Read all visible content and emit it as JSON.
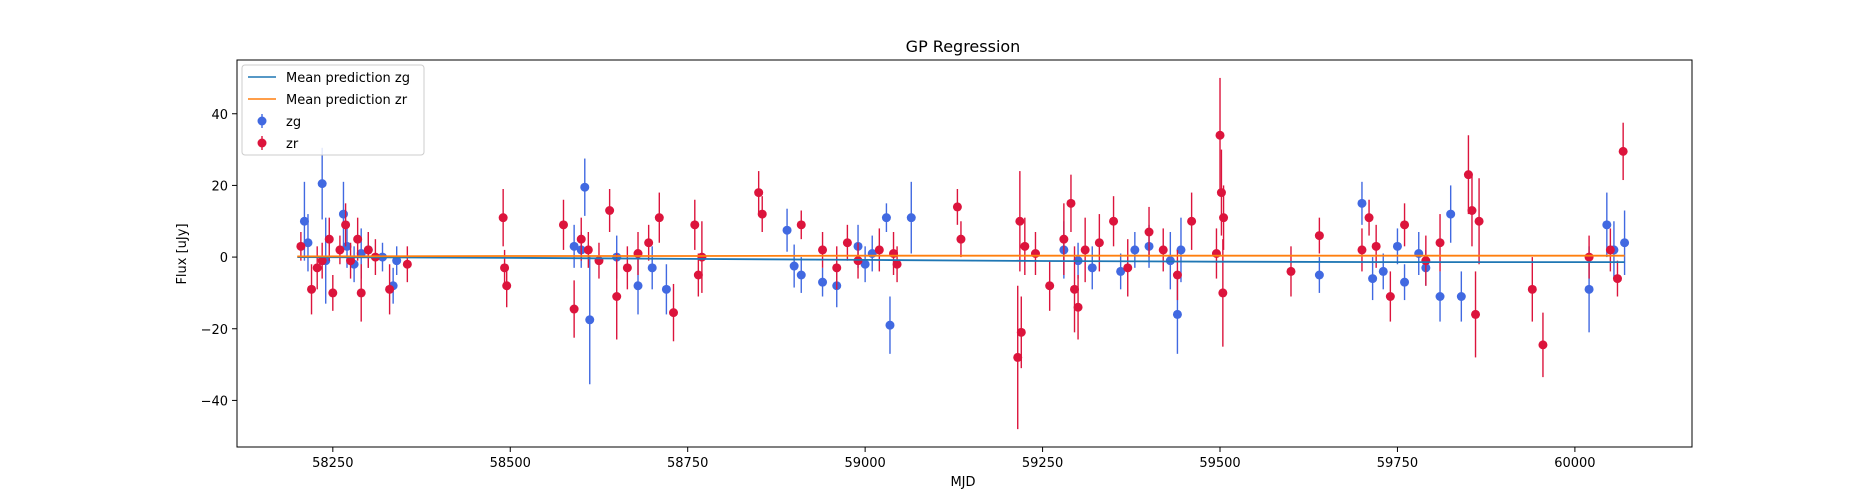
{
  "chart_data": {
    "type": "scatter",
    "title": "GP Regression",
    "xlabel": "MJD",
    "ylabel": "Flux [uJy]",
    "xlim": [
      58115,
      60165
    ],
    "ylim": [
      -53,
      55
    ],
    "xticks": [
      58250,
      58500,
      58750,
      59000,
      59250,
      59500,
      59750,
      60000
    ],
    "yticks": [
      -40,
      -20,
      0,
      20,
      40
    ],
    "grid": false,
    "legend_position": "top-left",
    "lines": [
      {
        "name": "Mean prediction zg",
        "color": "#1f77b4",
        "x": [
          58200,
          58500,
          58750,
          59000,
          59250,
          59500,
          59750,
          60000,
          60070
        ],
        "y": [
          0.0,
          -0.2,
          -0.5,
          -0.8,
          -1.1,
          -1.3,
          -1.4,
          -1.4,
          -1.4
        ]
      },
      {
        "name": "Mean prediction zr",
        "color": "#ff7f0e",
        "x": [
          58200,
          58500,
          58750,
          59000,
          59250,
          59500,
          59750,
          60000,
          60070
        ],
        "y": [
          0.2,
          0.3,
          0.3,
          0.4,
          0.4,
          0.4,
          0.4,
          0.4,
          0.4
        ]
      }
    ],
    "series": [
      {
        "name": "zg",
        "color": "#4169e1",
        "x": [
          58210,
          58215,
          58235,
          58240,
          58265,
          58270,
          58280,
          58290,
          58300,
          58320,
          58335,
          58340,
          58590,
          58600,
          58605,
          58612,
          58650,
          58680,
          58700,
          58720,
          58890,
          58900,
          58910,
          58940,
          58960,
          58990,
          59000,
          59010,
          59030,
          59035,
          59065,
          59280,
          59300,
          59320,
          59360,
          59380,
          59400,
          59430,
          59440,
          59445,
          59640,
          59700,
          59715,
          59730,
          59750,
          59760,
          59780,
          59790,
          59810,
          59825,
          59840,
          60020,
          60045,
          60055,
          60070
        ],
        "y": [
          10,
          4,
          20.5,
          -1,
          12,
          3,
          -2,
          1,
          2,
          0,
          -8,
          -1,
          3,
          2,
          19.5,
          -17.5,
          0,
          -8,
          -3,
          -9,
          7.5,
          -2.5,
          -5,
          -7,
          -8,
          3,
          -2,
          1,
          11,
          -19,
          11,
          2,
          -1,
          -3,
          -4,
          2,
          3,
          -1,
          -16,
          2,
          -5,
          15,
          -6,
          -4,
          3,
          -7,
          1,
          -3,
          -11,
          12,
          -11,
          -9,
          9,
          2,
          4
        ],
        "err": [
          11,
          8,
          10,
          12,
          9,
          6,
          5,
          7,
          5,
          4,
          5,
          4,
          6,
          5,
          8,
          18,
          6,
          8,
          6,
          7,
          6,
          6,
          5,
          4,
          6,
          6,
          5,
          5,
          4,
          8,
          10,
          8,
          5,
          6,
          5,
          5,
          6,
          8,
          11,
          9,
          5,
          6,
          6,
          5,
          5,
          5,
          6,
          5,
          7,
          8,
          7,
          12,
          9,
          8,
          9
        ]
      },
      {
        "name": "zr",
        "color": "#dc143c",
        "x": [
          58205,
          58220,
          58228,
          58235,
          58245,
          58250,
          58260,
          58268,
          58275,
          58285,
          58290,
          58300,
          58310,
          58330,
          58355,
          58490,
          58492,
          58495,
          58575,
          58590,
          58600,
          58610,
          58625,
          58640,
          58650,
          58665,
          58680,
          58695,
          58710,
          58730,
          58760,
          58765,
          58770,
          58850,
          58855,
          58910,
          58940,
          58960,
          58975,
          58990,
          59020,
          59040,
          59045,
          59130,
          59135,
          59215,
          59218,
          59220,
          59225,
          59240,
          59260,
          59280,
          59290,
          59295,
          59300,
          59310,
          59330,
          59350,
          59370,
          59400,
          59420,
          59440,
          59460,
          59495,
          59500,
          59502,
          59504,
          59505,
          59600,
          59640,
          59700,
          59710,
          59720,
          59740,
          59760,
          59790,
          59810,
          59850,
          59855,
          59860,
          59865,
          59940,
          59955,
          60020,
          60050,
          60060,
          60068
        ],
        "y": [
          3,
          -9,
          -3,
          -1,
          5,
          -10,
          2,
          9,
          -1,
          5,
          -10,
          2,
          0,
          -9,
          -2,
          11,
          -3,
          -8,
          9,
          -14.5,
          5,
          2,
          -1,
          13,
          -11,
          -3,
          1,
          4,
          11,
          -15.5,
          9,
          -5,
          0,
          18,
          12,
          9,
          2,
          -3,
          4,
          -1,
          2,
          1,
          -2,
          14,
          5,
          -28,
          10,
          -21,
          3,
          1,
          -8,
          5,
          15,
          -9,
          -14,
          2,
          4,
          10,
          -3,
          7,
          2,
          -5,
          10,
          1,
          34,
          18,
          -10,
          11,
          -4,
          6,
          2,
          11,
          3,
          -11,
          9,
          -1,
          4,
          23,
          13,
          -16,
          10,
          -9,
          -24.5,
          0,
          2,
          -6,
          29.5
        ],
        "err": [
          4,
          7,
          6,
          5,
          6,
          5,
          4,
          6,
          5,
          6,
          8,
          5,
          5,
          7,
          5,
          8,
          5,
          6,
          7,
          8,
          6,
          5,
          5,
          6,
          12,
          6,
          6,
          5,
          7,
          8,
          7,
          6,
          10,
          6,
          5,
          4,
          5,
          6,
          5,
          5,
          6,
          6,
          5,
          5,
          5,
          20,
          14,
          10,
          8,
          6,
          7,
          10,
          8,
          12,
          9,
          9,
          8,
          7,
          8,
          7,
          6,
          7,
          8,
          7,
          16,
          12,
          15,
          9,
          7,
          5,
          6,
          5,
          6,
          7,
          6,
          7,
          8,
          11,
          10,
          12,
          12,
          9,
          9,
          6,
          6,
          5,
          8
        ]
      }
    ]
  }
}
